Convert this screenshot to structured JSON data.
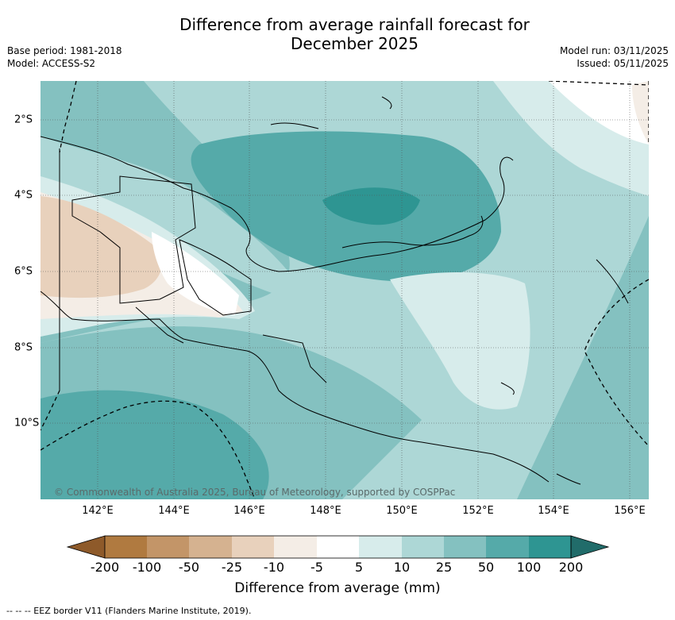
{
  "title_line1": "Difference from average rainfall forecast for",
  "title_line2": "December 2025",
  "meta_left": [
    "Base period: 1981-2018",
    "Model: ACCESS-S2"
  ],
  "meta_right": [
    "Model run: 03/11/2025",
    "Issued: 05/11/2025"
  ],
  "x_ticks": [
    {
      "label": "142°E",
      "lon": 142
    },
    {
      "label": "144°E",
      "lon": 144
    },
    {
      "label": "146°E",
      "lon": 146
    },
    {
      "label": "148°E",
      "lon": 148
    },
    {
      "label": "150°E",
      "lon": 150
    },
    {
      "label": "152°E",
      "lon": 152
    },
    {
      "label": "154°E",
      "lon": 154
    },
    {
      "label": "156°E",
      "lon": 156
    }
  ],
  "y_ticks": [
    {
      "label": "2°S",
      "lat": -2
    },
    {
      "label": "4°S",
      "lat": -4
    },
    {
      "label": "6°S",
      "lat": -6
    },
    {
      "label": "8°S",
      "lat": -8
    },
    {
      "label": "10°S",
      "lat": -10
    }
  ],
  "copyright": "© Commonwealth of Australia 2025, Bureau of Meteorology, supported by COSPPac",
  "colorbar": {
    "title": "Difference from average (mm)",
    "labels": [
      "-200",
      "-100",
      "-50",
      "-25",
      "-10",
      "-5",
      "5",
      "10",
      "25",
      "50",
      "100",
      "200"
    ],
    "colors": [
      "#8e5a2a",
      "#b07a40",
      "#c39568",
      "#d5b290",
      "#e8d1bc",
      "#f4ede6",
      "#ffffff",
      "#d7eceb",
      "#add7d6",
      "#84c1c0",
      "#55aaa9",
      "#2e9592",
      "#216c6a"
    ]
  },
  "footnote": "--  --  -- EEZ border V11 (Flanders Marine Institute, 2019).",
  "map": {
    "bounds": {
      "lon_min": 140.5,
      "lon_max": 156.5,
      "lat_min": -12,
      "lat_max": -1
    }
  }
}
